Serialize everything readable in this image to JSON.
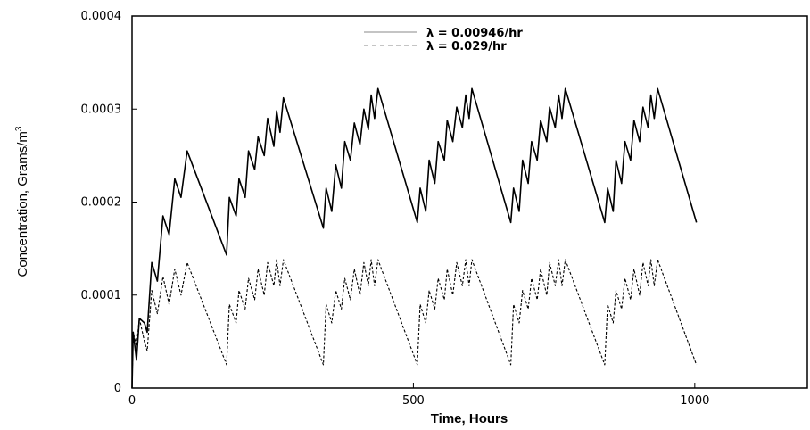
{
  "chart_data": {
    "type": "line",
    "title": "",
    "xlabel": "Time, Hours",
    "ylabel": "Concentration, Grams/m",
    "ylabel_sup": "3",
    "xlim": [
      0,
      1200
    ],
    "ylim": [
      0,
      0.0004
    ],
    "x_ticks": [
      0,
      500,
      1000
    ],
    "x_tick_labels": [
      "0",
      "500",
      "1000"
    ],
    "y_ticks": [
      0,
      0.0001,
      0.0002,
      0.0003,
      0.0004
    ],
    "y_tick_labels": [
      "0",
      "0.0001",
      "0.0002",
      "0.0003",
      "0.0004"
    ],
    "grid": false,
    "legend_position": "top-center",
    "series": [
      {
        "name": "λ = 0.00946/hr",
        "style": "solid",
        "color": "#000000",
        "points": [
          [
            0,
            0
          ],
          [
            2,
            6e-05
          ],
          [
            8,
            3e-05
          ],
          [
            13,
            7.5e-05
          ],
          [
            22,
            7e-05
          ],
          [
            27,
            6e-05
          ],
          [
            35,
            0.000135
          ],
          [
            45,
            0.000115
          ],
          [
            55,
            0.000185
          ],
          [
            66,
            0.000165
          ],
          [
            76,
            0.000225
          ],
          [
            87,
            0.000205
          ],
          [
            98,
            0.000255
          ],
          [
            168,
            0.000143
          ],
          [
            173,
            0.000205
          ],
          [
            185,
            0.000185
          ],
          [
            190,
            0.000225
          ],
          [
            201,
            0.000205
          ],
          [
            207,
            0.000255
          ],
          [
            218,
            0.000235
          ],
          [
            224,
            0.00027
          ],
          [
            235,
            0.00025
          ],
          [
            241,
            0.00029
          ],
          [
            252,
            0.00026
          ],
          [
            257,
            0.000298
          ],
          [
            263,
            0.000275
          ],
          [
            269,
            0.000312
          ],
          [
            340,
            0.000172
          ],
          [
            345,
            0.000215
          ],
          [
            355,
            0.00019
          ],
          [
            362,
            0.00024
          ],
          [
            372,
            0.000215
          ],
          [
            378,
            0.000265
          ],
          [
            388,
            0.000245
          ],
          [
            395,
            0.000285
          ],
          [
            405,
            0.000262
          ],
          [
            412,
            0.0003
          ],
          [
            420,
            0.000278
          ],
          [
            425,
            0.000315
          ],
          [
            431,
            0.00029
          ],
          [
            437,
            0.000322
          ],
          [
            507,
            0.000178
          ],
          [
            512,
            0.000215
          ],
          [
            522,
            0.00019
          ],
          [
            528,
            0.000245
          ],
          [
            538,
            0.00022
          ],
          [
            544,
            0.000265
          ],
          [
            555,
            0.000245
          ],
          [
            560,
            0.000288
          ],
          [
            570,
            0.000265
          ],
          [
            577,
            0.000302
          ],
          [
            587,
            0.00028
          ],
          [
            593,
            0.000315
          ],
          [
            599,
            0.00029
          ],
          [
            604,
            0.000322
          ],
          [
            673,
            0.000178
          ],
          [
            678,
            0.000215
          ],
          [
            688,
            0.00019
          ],
          [
            694,
            0.000245
          ],
          [
            704,
            0.00022
          ],
          [
            710,
            0.000265
          ],
          [
            720,
            0.000245
          ],
          [
            726,
            0.000288
          ],
          [
            737,
            0.000265
          ],
          [
            742,
            0.000302
          ],
          [
            752,
            0.00028
          ],
          [
            758,
            0.000315
          ],
          [
            764,
            0.00029
          ],
          [
            770,
            0.000322
          ],
          [
            840,
            0.000178
          ],
          [
            845,
            0.000215
          ],
          [
            855,
            0.00019
          ],
          [
            860,
            0.000245
          ],
          [
            870,
            0.00022
          ],
          [
            876,
            0.000265
          ],
          [
            886,
            0.000245
          ],
          [
            892,
            0.000288
          ],
          [
            902,
            0.000265
          ],
          [
            908,
            0.000302
          ],
          [
            917,
            0.00028
          ],
          [
            922,
            0.000315
          ],
          [
            928,
            0.00029
          ],
          [
            934,
            0.000322
          ],
          [
            1003,
            0.000178
          ]
        ]
      },
      {
        "name": "λ = 0.029/hr",
        "style": "dashed",
        "color": "#000000",
        "points": [
          [
            0,
            0
          ],
          [
            2,
            6e-05
          ],
          [
            8,
            4.5e-05
          ],
          [
            13,
            7.5e-05
          ],
          [
            22,
            5e-05
          ],
          [
            27,
            4e-05
          ],
          [
            35,
            0.000105
          ],
          [
            45,
            8e-05
          ],
          [
            55,
            0.00012
          ],
          [
            66,
            9e-05
          ],
          [
            76,
            0.000128
          ],
          [
            87,
            0.0001
          ],
          [
            98,
            0.000135
          ],
          [
            168,
            2.5e-05
          ],
          [
            173,
            9e-05
          ],
          [
            185,
            7e-05
          ],
          [
            190,
            0.000105
          ],
          [
            201,
            8.5e-05
          ],
          [
            207,
            0.000118
          ],
          [
            218,
            9.5e-05
          ],
          [
            224,
            0.000128
          ],
          [
            235,
            0.0001
          ],
          [
            241,
            0.000135
          ],
          [
            252,
            0.00011
          ],
          [
            257,
            0.000138
          ],
          [
            263,
            0.00011
          ],
          [
            269,
            0.000138
          ],
          [
            340,
            2.5e-05
          ],
          [
            345,
            9e-05
          ],
          [
            355,
            7e-05
          ],
          [
            362,
            0.000105
          ],
          [
            372,
            8.5e-05
          ],
          [
            378,
            0.000118
          ],
          [
            388,
            9.5e-05
          ],
          [
            395,
            0.000128
          ],
          [
            405,
            0.0001
          ],
          [
            412,
            0.000135
          ],
          [
            420,
            0.00011
          ],
          [
            425,
            0.000138
          ],
          [
            431,
            0.00011
          ],
          [
            437,
            0.000138
          ],
          [
            507,
            2.5e-05
          ],
          [
            512,
            9e-05
          ],
          [
            522,
            7e-05
          ],
          [
            528,
            0.000105
          ],
          [
            538,
            8.5e-05
          ],
          [
            544,
            0.000118
          ],
          [
            555,
            9.5e-05
          ],
          [
            560,
            0.000128
          ],
          [
            570,
            0.0001
          ],
          [
            577,
            0.000135
          ],
          [
            587,
            0.00011
          ],
          [
            593,
            0.000138
          ],
          [
            599,
            0.00011
          ],
          [
            604,
            0.000138
          ],
          [
            673,
            2.5e-05
          ],
          [
            678,
            9e-05
          ],
          [
            688,
            7e-05
          ],
          [
            694,
            0.000105
          ],
          [
            704,
            8.5e-05
          ],
          [
            710,
            0.000118
          ],
          [
            720,
            9.5e-05
          ],
          [
            726,
            0.000128
          ],
          [
            737,
            0.0001
          ],
          [
            742,
            0.000135
          ],
          [
            752,
            0.00011
          ],
          [
            758,
            0.000138
          ],
          [
            764,
            0.00011
          ],
          [
            770,
            0.000138
          ],
          [
            840,
            2.5e-05
          ],
          [
            845,
            9e-05
          ],
          [
            855,
            7e-05
          ],
          [
            860,
            0.000105
          ],
          [
            870,
            8.5e-05
          ],
          [
            876,
            0.000118
          ],
          [
            886,
            9.5e-05
          ],
          [
            892,
            0.000128
          ],
          [
            902,
            0.0001
          ],
          [
            908,
            0.000135
          ],
          [
            917,
            0.00011
          ],
          [
            922,
            0.000138
          ],
          [
            928,
            0.00011
          ],
          [
            934,
            0.000138
          ],
          [
            1003,
            2.5e-05
          ]
        ]
      }
    ]
  }
}
